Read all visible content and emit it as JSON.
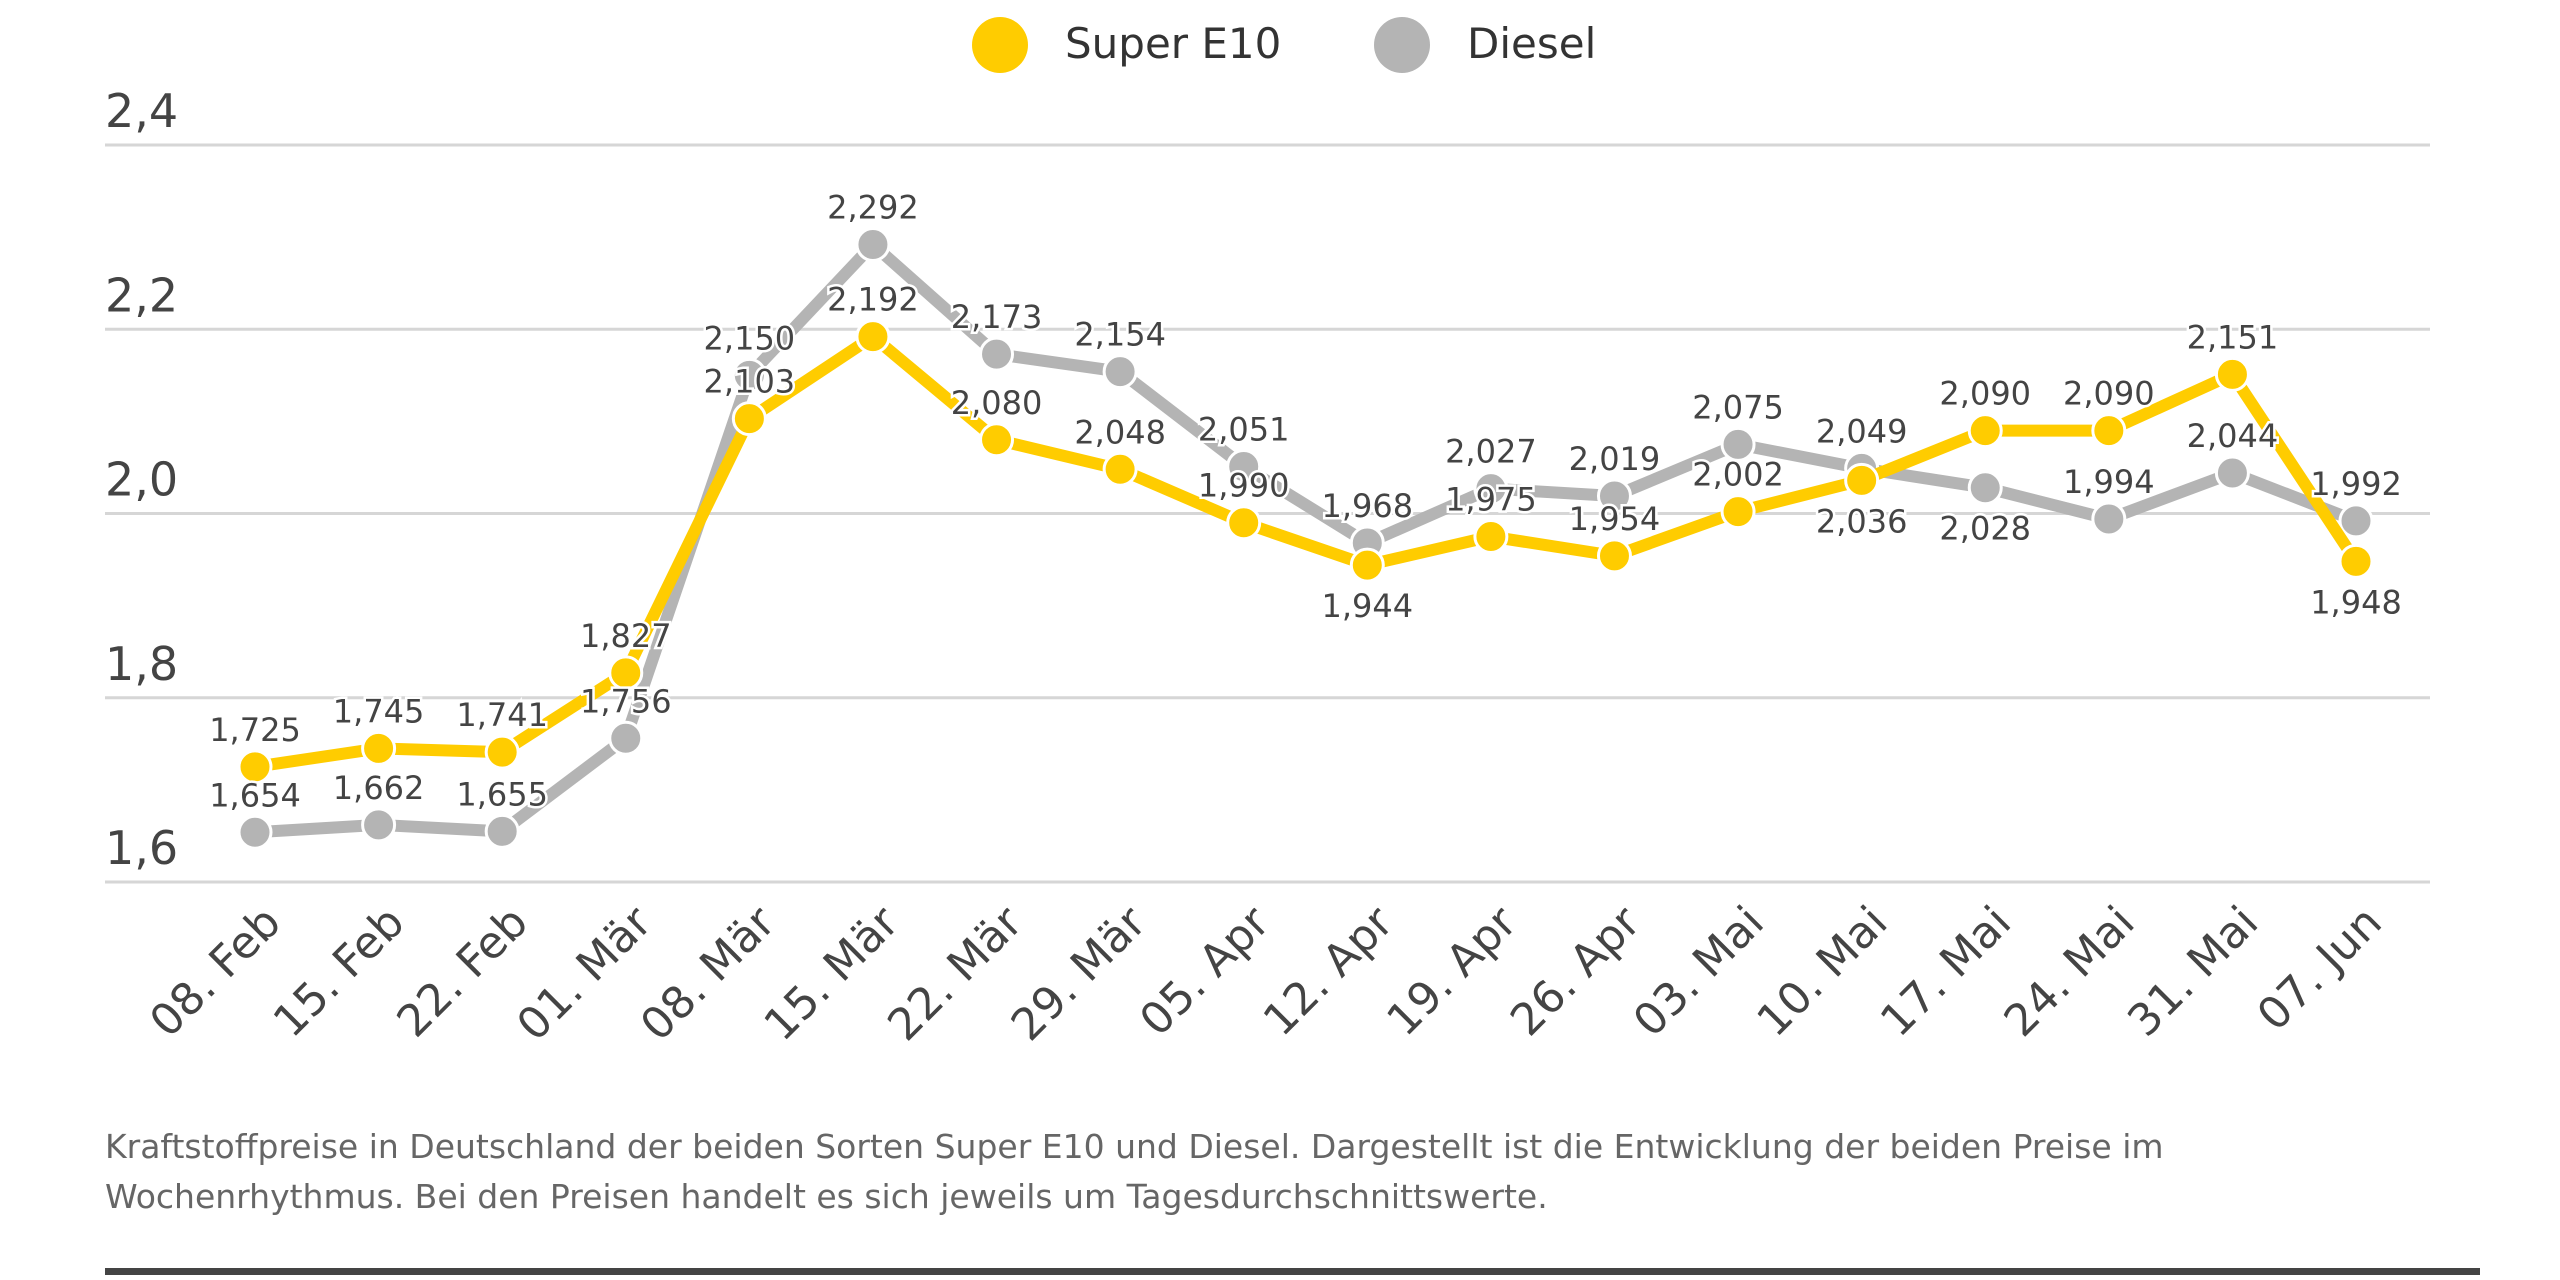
{
  "chart_data": {
    "type": "line",
    "categories": [
      "08. Feb",
      "15. Feb",
      "22. Feb",
      "01. Mär",
      "08. Mär",
      "15. Mär",
      "22. Mär",
      "29. Mär",
      "05. Apr",
      "12. Apr",
      "19. Apr",
      "26. Apr",
      "03. Mai",
      "10. Mai",
      "17. Mai",
      "24. Mai",
      "31. Mai",
      "07. Jun"
    ],
    "series": [
      {
        "name": "Super E10",
        "color": "#FFCC00",
        "values": [
          1.725,
          1.745,
          1.741,
          1.827,
          2.103,
          2.192,
          2.08,
          2.048,
          1.99,
          1.944,
          1.975,
          1.954,
          2.002,
          2.036,
          2.09,
          2.09,
          2.151,
          1.948
        ],
        "labels": [
          "1,725",
          "1,745",
          "1,741",
          "1,827",
          "2,103",
          "2,192",
          "2,080",
          "2,048",
          "1,990",
          "1,944",
          "1,975",
          "1,954",
          "2,002",
          "2,036",
          "2,090",
          "2,090",
          "2,151",
          "1,948"
        ]
      },
      {
        "name": "Diesel",
        "color": "#B4B4B4",
        "values": [
          1.654,
          1.662,
          1.655,
          1.756,
          2.15,
          2.292,
          2.173,
          2.154,
          2.051,
          1.968,
          2.027,
          2.019,
          2.075,
          2.049,
          2.028,
          1.994,
          2.044,
          1.992
        ],
        "labels": [
          "1,654",
          "1,662",
          "1,655",
          "1,756",
          "2,150",
          "2,292",
          "2,173",
          "2,154",
          "2,051",
          "1,968",
          "2,027",
          "2,019",
          "2,075",
          "2,049",
          "2,028",
          "1,994",
          "2,044",
          "1,992"
        ]
      }
    ],
    "yticks": [
      1.6,
      1.8,
      2.0,
      2.2,
      2.4
    ],
    "ytick_labels": [
      "1,6",
      "1,8",
      "2,0",
      "2,2",
      "2,4"
    ],
    "ylim": [
      1.6,
      2.4
    ],
    "grid": true,
    "legend": "top-center",
    "data_labels": true
  },
  "caption": "Kraftstoffpreise in Deutschland der beiden Sorten Super E10 und Diesel. Dargestellt ist die Entwicklung der beiden Preise im Wochenrhythmus. Bei den Preisen handelt es sich jeweils um Tagesdurchschnittswerte."
}
